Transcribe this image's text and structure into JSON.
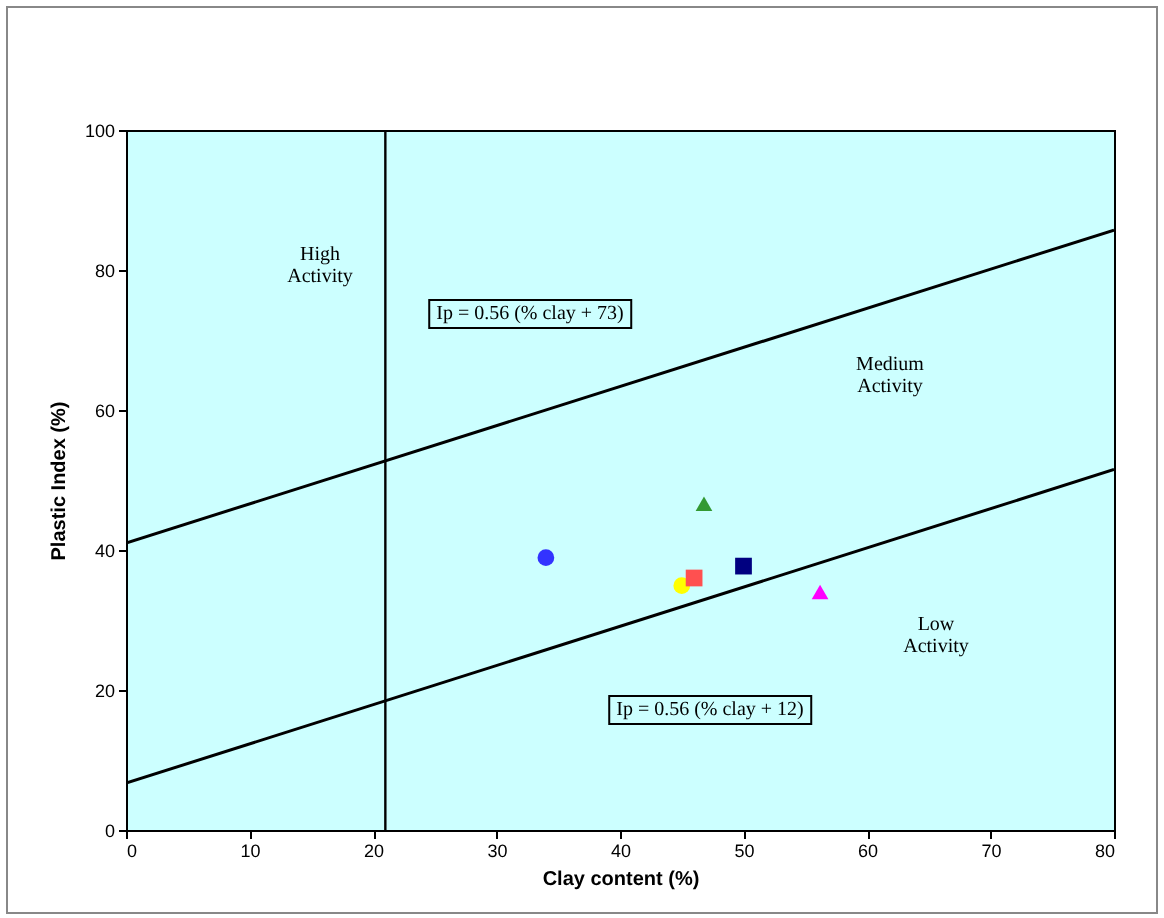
{
  "chart_data": {
    "type": "scatter",
    "xlabel": "Clay content (%)",
    "ylabel": "Plastic Index (%)",
    "xlim": [
      0,
      80
    ],
    "xticks": [
      0,
      10,
      20,
      30,
      40,
      50,
      60,
      70,
      80
    ],
    "ylim": [
      0,
      100
    ],
    "yticks": [
      0,
      20,
      40,
      60,
      80,
      100
    ],
    "grid": false,
    "series": [
      {
        "type": "line",
        "color": "#000000",
        "x": [
          0,
          80
        ],
        "values": [
          41,
          85.7
        ],
        "marker": "none"
      },
      {
        "type": "line",
        "color": "#000000",
        "x": [
          0,
          80
        ],
        "values": [
          6.7,
          51.5
        ],
        "marker": "none"
      },
      {
        "color": "#3333ff",
        "x": [
          34
        ],
        "values": [
          38.9
        ],
        "marker": "circle"
      },
      {
        "color": "#ffff00",
        "x": [
          45
        ],
        "values": [
          34.9
        ],
        "marker": "circle"
      },
      {
        "color": "#ff5050",
        "x": [
          46
        ],
        "values": [
          36
        ],
        "marker": "square"
      },
      {
        "color": "#000080",
        "x": [
          50
        ],
        "values": [
          37.7
        ],
        "marker": "square"
      },
      {
        "color": "#ff00ff",
        "x": [
          56.2
        ],
        "values": [
          34
        ],
        "marker": "triangle"
      },
      {
        "color": "#339933",
        "x": [
          46.8
        ],
        "values": [
          46.6
        ],
        "marker": "triangle"
      }
    ],
    "ref_lines": [
      {
        "axis": "x",
        "value": 21,
        "color": "#000000"
      }
    ],
    "annotations": [
      "High\nActivity",
      "Ip = 0.56 (% clay + 73)",
      "Medium\nActivity",
      "Low\nActivity",
      "Ip = 0.56 (% clay + 12)"
    ]
  }
}
